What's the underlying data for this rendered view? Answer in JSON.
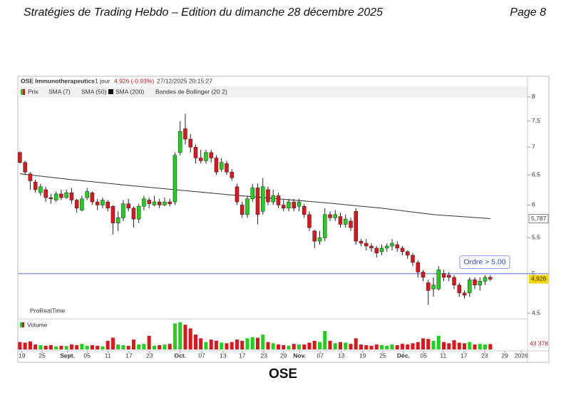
{
  "header": {
    "title": "Stratégies de Trading Hebdo –  Edition du dimanche 28 décembre 2025",
    "page": "Page 8"
  },
  "caption": "OSE",
  "chart_data": {
    "type": "candlestick",
    "title": "OSE Immunotherapeutics",
    "period": "1 jour",
    "quote": "4.926 (-0.93%)",
    "timestamp": "27/12/2025 20:15:27",
    "legend": [
      "Prix",
      "SMA (7)",
      "SMA (50)",
      "SMA (200)",
      "Bandes de Bollinger (20 2)"
    ],
    "watermark": "ProRealTime",
    "up_color": "#1fd11f",
    "down_color": "#e0141b",
    "log_scale": true,
    "ylim": [
      4.45,
      8.12
    ],
    "yticks": [
      {
        "value": 4.5,
        "label": "4,5"
      },
      5,
      {
        "value": 5.5,
        "label": "5,5"
      },
      6,
      {
        "value": 6.5,
        "label": "6,5"
      },
      7,
      {
        "value": 7.5,
        "label": "7,5"
      },
      8
    ],
    "xlim": [
      -0.4,
      98.2
    ],
    "xticks": [
      {
        "value": 0.4,
        "label": "19"
      },
      {
        "value": 4.3,
        "label": "25"
      },
      {
        "value": 9.2,
        "label": "Sept."
      },
      {
        "value": 13,
        "label": "05"
      },
      {
        "value": 17,
        "label": "11"
      },
      {
        "value": 21.1,
        "label": "17"
      },
      {
        "value": 25.1,
        "label": "23"
      },
      {
        "value": 31,
        "label": "Oct."
      },
      {
        "value": 35.2,
        "label": "07"
      },
      {
        "value": 39.3,
        "label": "13"
      },
      {
        "value": 43,
        "label": "17"
      },
      {
        "value": 47.2,
        "label": "23"
      },
      {
        "value": 51,
        "label": "29"
      },
      {
        "value": 54.1,
        "label": "Nov."
      },
      {
        "value": 58.1,
        "label": "07"
      },
      {
        "value": 62.2,
        "label": "13"
      },
      {
        "value": 66.3,
        "label": "19"
      },
      {
        "value": 70.2,
        "label": "25"
      },
      {
        "value": 74.2,
        "label": "Déc."
      },
      {
        "value": 78.1,
        "label": "05"
      },
      {
        "value": 81.9,
        "label": "11"
      },
      {
        "value": 85.9,
        "label": "17"
      },
      {
        "value": 89.9,
        "label": "23"
      },
      {
        "value": 93.8,
        "label": "29"
      },
      {
        "value": 97,
        "label": "2026"
      }
    ],
    "open": [
      6.9,
      6.72,
      6.52,
      6.38,
      6.2,
      6.25,
      6.12,
      6.08,
      6.18,
      6.12,
      6.2,
      6.08,
      5.92,
      6.12,
      6.2,
      6.05,
      6.0,
      6.05,
      5.98,
      5.72,
      5.8,
      6.02,
      5.95,
      5.78,
      5.98,
      6.08,
      6.0,
      6.05,
      6.0,
      6.05,
      6.05,
      6.9,
      7.35,
      7.15,
      7.0,
      6.8,
      6.75,
      6.9,
      6.8,
      6.6,
      6.7,
      6.55,
      6.3,
      6.0,
      5.85,
      6.1,
      6.28,
      5.9,
      6.25,
      6.05,
      6.15,
      6.0,
      5.95,
      6.05,
      5.98,
      5.98,
      5.85,
      5.6,
      5.45,
      5.5,
      5.85,
      5.8,
      5.82,
      5.7,
      5.75,
      5.9,
      5.45,
      5.42,
      5.38,
      5.35,
      5.3,
      5.35,
      5.38,
      5.4,
      5.35,
      5.3,
      5.25,
      5.15,
      5.02,
      4.88,
      4.8,
      4.8,
      5.0,
      4.98,
      4.95,
      4.85,
      4.75,
      4.75,
      4.92,
      4.85,
      4.9,
      4.95
    ],
    "high": [
      6.92,
      6.75,
      6.55,
      6.42,
      6.35,
      6.3,
      6.18,
      6.22,
      6.25,
      6.25,
      6.28,
      6.1,
      6.15,
      6.28,
      6.22,
      6.1,
      6.12,
      6.08,
      6.0,
      5.9,
      6.08,
      6.1,
      5.98,
      6.02,
      6.15,
      6.12,
      6.15,
      6.1,
      6.12,
      6.1,
      6.9,
      7.5,
      7.65,
      7.25,
      7.05,
      6.95,
      6.95,
      6.95,
      6.85,
      6.8,
      6.75,
      6.6,
      6.35,
      6.05,
      6.15,
      6.35,
      6.35,
      6.45,
      6.3,
      6.25,
      6.2,
      6.08,
      6.1,
      6.1,
      6.1,
      6.02,
      5.9,
      5.62,
      5.6,
      5.95,
      5.9,
      5.92,
      5.88,
      5.85,
      5.8,
      5.95,
      5.48,
      5.48,
      5.42,
      5.38,
      5.4,
      5.42,
      5.48,
      5.45,
      5.38,
      5.32,
      5.28,
      5.18,
      5.05,
      4.92,
      4.95,
      5.1,
      5.05,
      5.02,
      4.98,
      4.88,
      4.78,
      4.95,
      4.95,
      4.95,
      4.98,
      4.98
    ],
    "low": [
      6.7,
      6.5,
      6.25,
      6.2,
      6.15,
      6.05,
      6.02,
      6.05,
      6.08,
      6.1,
      6.02,
      5.88,
      5.9,
      6.08,
      6.0,
      5.92,
      5.95,
      5.9,
      5.55,
      5.6,
      5.75,
      5.9,
      5.65,
      5.72,
      5.92,
      5.95,
      5.98,
      5.95,
      5.98,
      5.98,
      6.0,
      6.85,
      7.05,
      6.9,
      6.7,
      6.7,
      6.7,
      6.72,
      6.5,
      6.55,
      6.5,
      6.4,
      6.0,
      5.8,
      5.8,
      6.05,
      5.7,
      5.85,
      6.0,
      6.0,
      5.95,
      5.9,
      5.9,
      5.9,
      5.9,
      5.8,
      5.6,
      5.35,
      5.4,
      5.45,
      5.75,
      5.75,
      5.65,
      5.65,
      5.6,
      5.4,
      5.38,
      5.32,
      5.3,
      5.22,
      5.25,
      5.3,
      5.32,
      5.3,
      5.25,
      5.2,
      5.1,
      4.95,
      4.9,
      4.6,
      4.7,
      4.78,
      4.9,
      4.9,
      4.8,
      4.7,
      4.68,
      4.7,
      4.8,
      4.78,
      4.85,
      4.9
    ],
    "close": [
      6.72,
      6.55,
      6.4,
      6.25,
      6.3,
      6.12,
      6.1,
      6.18,
      6.12,
      6.2,
      6.08,
      5.95,
      6.1,
      6.22,
      6.05,
      6.0,
      6.08,
      5.95,
      5.72,
      5.8,
      6.02,
      5.95,
      5.78,
      5.98,
      6.1,
      6.02,
      6.05,
      6.0,
      6.05,
      6.02,
      6.85,
      7.3,
      7.15,
      7.0,
      6.8,
      6.75,
      6.9,
      6.8,
      6.55,
      6.72,
      6.55,
      6.45,
      6.05,
      5.85,
      6.1,
      6.28,
      5.85,
      6.3,
      6.05,
      6.15,
      6.0,
      5.95,
      6.05,
      5.95,
      6.05,
      5.85,
      5.65,
      5.45,
      5.5,
      5.85,
      5.8,
      5.85,
      5.7,
      5.78,
      5.65,
      5.45,
      5.42,
      5.38,
      5.35,
      5.28,
      5.35,
      5.38,
      5.42,
      5.35,
      5.3,
      5.25,
      5.15,
      5.02,
      4.95,
      4.78,
      4.85,
      5.05,
      4.95,
      4.95,
      4.85,
      4.75,
      4.72,
      4.92,
      4.85,
      4.9,
      4.95,
      4.926
    ],
    "last_price": {
      "value": 4.926,
      "label": "4,926"
    },
    "sma200": {
      "name": "SMA (200)",
      "color": "#333333",
      "x": [
        0,
        10,
        20,
        30,
        40,
        50,
        60,
        70,
        80,
        91
      ],
      "values": [
        6.52,
        6.42,
        6.33,
        6.25,
        6.17,
        6.1,
        6.03,
        5.95,
        5.85,
        5.787
      ],
      "last_label": {
        "value": 5.787,
        "label": "5,787"
      }
    },
    "hline": {
      "value": 5,
      "label": "Ordre > 5.00",
      "color": "#8a96ee"
    },
    "volume": {
      "name": "Volume",
      "ylim": [
        0,
        230000
      ],
      "last_label": "43 378",
      "values": [
        60000,
        55000,
        65000,
        40000,
        35000,
        30000,
        35000,
        25000,
        30000,
        28000,
        40000,
        35000,
        45000,
        30000,
        35000,
        30000,
        25000,
        70000,
        95000,
        40000,
        35000,
        30000,
        80000,
        40000,
        45000,
        110000,
        30000,
        35000,
        40000,
        45000,
        210000,
        220000,
        200000,
        170000,
        120000,
        90000,
        60000,
        80000,
        70000,
        55000,
        50000,
        60000,
        80000,
        70000,
        90000,
        100000,
        95000,
        120000,
        60000,
        50000,
        40000,
        35000,
        30000,
        45000,
        40000,
        40000,
        55000,
        70000,
        60000,
        150000,
        70000,
        50000,
        60000,
        55000,
        45000,
        90000,
        40000,
        35000,
        30000,
        40000,
        35000,
        30000,
        40000,
        35000,
        45000,
        40000,
        50000,
        60000,
        90000,
        85000,
        70000,
        110000,
        60000,
        50000,
        75000,
        55000,
        50000,
        60000,
        40000,
        45000,
        40000,
        43378
      ]
    }
  }
}
